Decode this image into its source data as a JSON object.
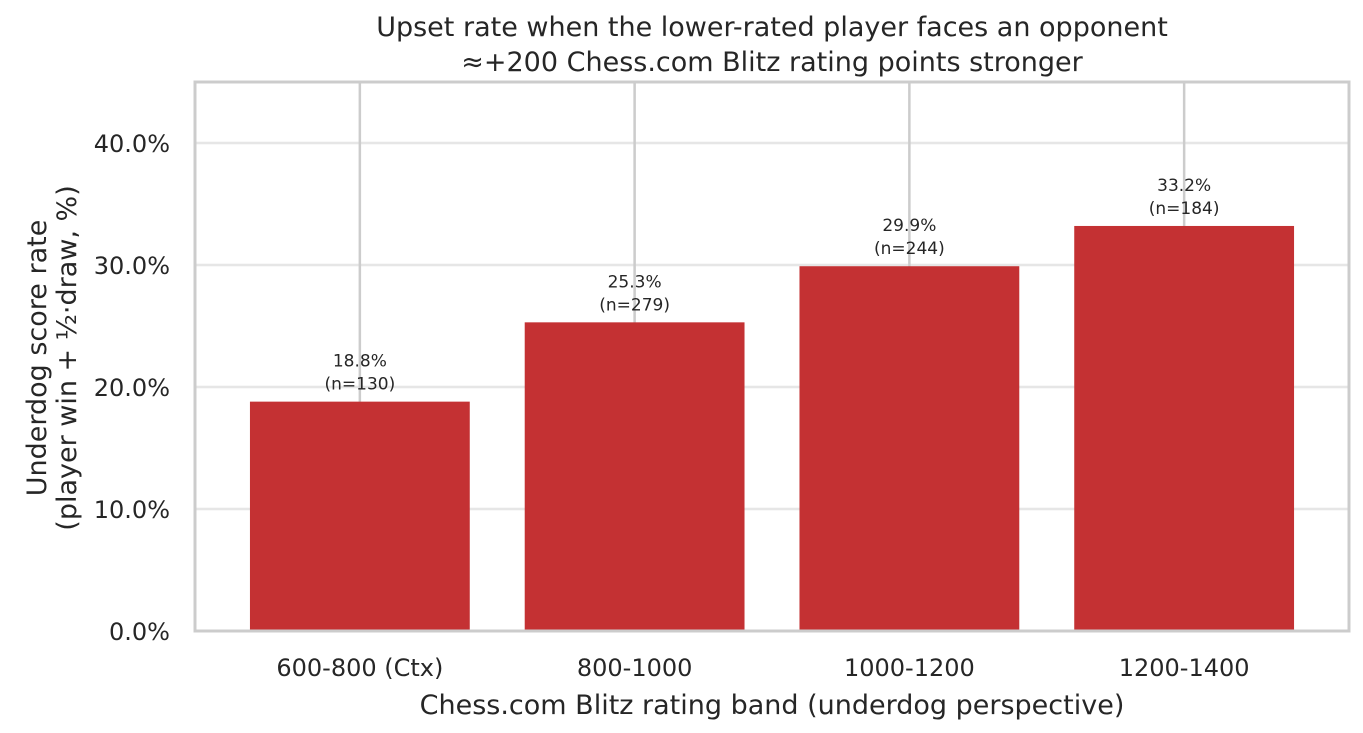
{
  "chart_data": {
    "type": "bar",
    "title_lines": [
      "Upset rate when the lower-rated player faces an opponent",
      "≈+200 Chess.com Blitz rating points stronger"
    ],
    "xlabel": "Chess.com Blitz rating band (underdog perspective)",
    "ylabel_lines": [
      "Underdog score rate",
      "(player win + ½·draw, %)"
    ],
    "categories": [
      "600-800 (Ctx)",
      "800-1000",
      "1000-1200",
      "1200-1400"
    ],
    "values": [
      18.8,
      25.3,
      29.9,
      33.2
    ],
    "n": [
      130,
      279,
      244,
      184
    ],
    "bar_labels": [
      [
        "18.8%",
        "(n=130)"
      ],
      [
        "25.3%",
        "(n=279)"
      ],
      [
        "29.9%",
        "(n=244)"
      ],
      [
        "33.2%",
        "(n=184)"
      ]
    ],
    "ylim": [
      0,
      45
    ],
    "yticks": [
      0,
      10,
      20,
      30,
      40
    ],
    "ytick_labels": [
      "0.0%",
      "10.0%",
      "20.0%",
      "30.0%",
      "40.0%"
    ],
    "grid": true,
    "colors": {
      "bar": "#c43133",
      "grid": "#e6e6e6",
      "vgrid": "#cccccc",
      "frame": "#cccccc"
    }
  }
}
